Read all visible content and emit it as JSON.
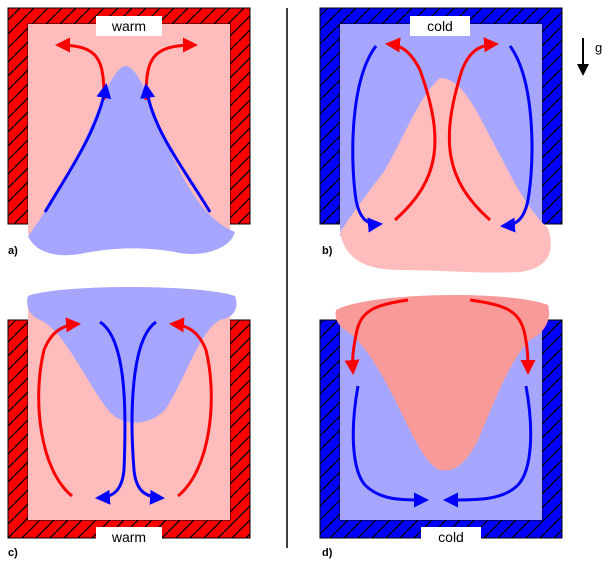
{
  "colors": {
    "warm_wall": "#ff0000",
    "cold_wall": "#0000ff",
    "warm_fluid": "#ffbcbc",
    "cold_fluid": "#a6a6ff",
    "red_arrow": "#ff0000",
    "blue_arrow": "#0000ff",
    "dense_red_fluid": "#f99a9a"
  },
  "panels": {
    "a": {
      "panel_label": "a)",
      "box_label": "warm"
    },
    "b": {
      "panel_label": "b)",
      "box_label": "cold"
    },
    "c": {
      "panel_label": "c)",
      "box_label": "warm"
    },
    "d": {
      "panel_label": "d)",
      "box_label": "cold"
    }
  },
  "gravity_label": "g"
}
